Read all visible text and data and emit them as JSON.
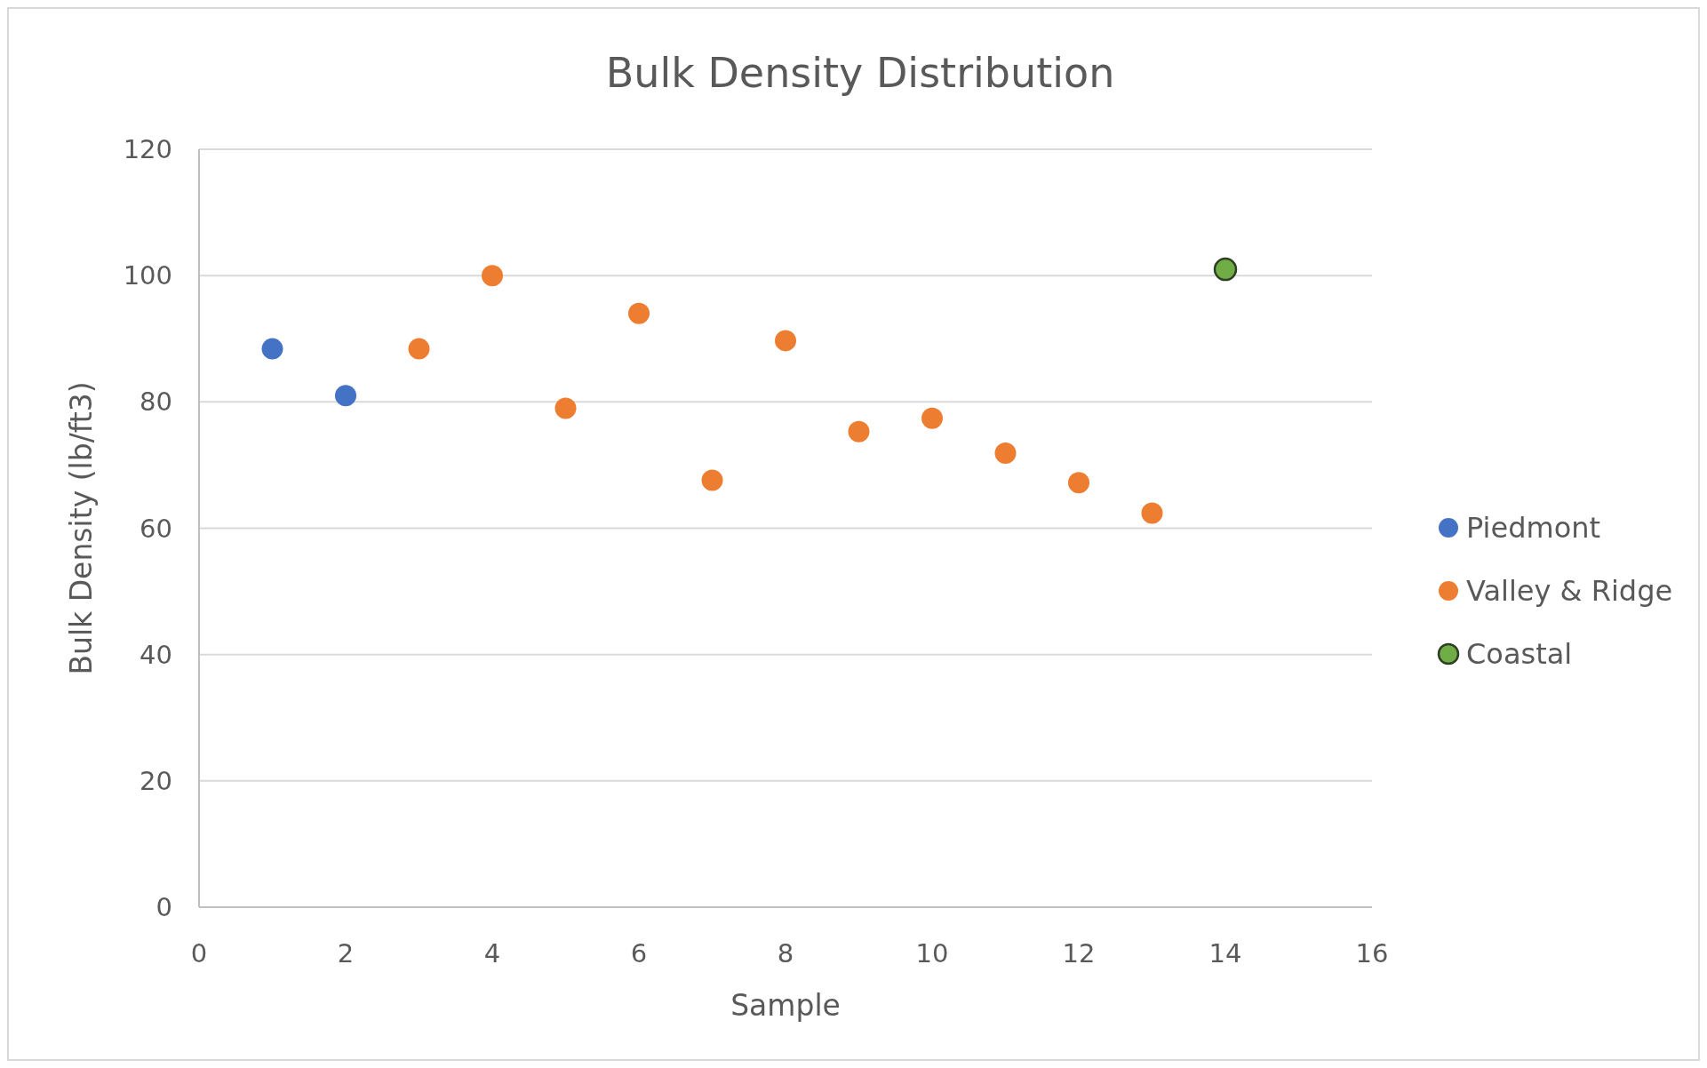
{
  "chart_data": {
    "type": "scatter",
    "title": "Bulk Density Distribution",
    "xlabel": "Sample",
    "ylabel": "Bulk Density (lb/ft3)",
    "series": [
      {
        "name": "Piedmont",
        "color": "#4472c4",
        "x": [
          1,
          2
        ],
        "values": [
          88.4,
          81
        ]
      },
      {
        "name": "Valley & Ridge",
        "color": "#ed7d31",
        "x": [
          3,
          4,
          5,
          6,
          7,
          8,
          9,
          10,
          11,
          12,
          13
        ],
        "values": [
          88.4,
          100,
          79,
          94,
          67.6,
          89.7,
          75.3,
          77.4,
          71.9,
          67.2,
          62.4
        ]
      },
      {
        "name": "Coastal",
        "color": "#70ad47",
        "x": [
          14
        ],
        "values": [
          101
        ]
      }
    ],
    "xlim": [
      0,
      16
    ],
    "xticks": [
      0,
      2,
      4,
      6,
      8,
      10,
      12,
      14,
      16
    ],
    "ylim": [
      0,
      120
    ],
    "yticks": [
      0,
      20,
      40,
      60,
      80,
      100,
      120
    ],
    "grid": "y",
    "legend": "right",
    "marker": "circle"
  }
}
